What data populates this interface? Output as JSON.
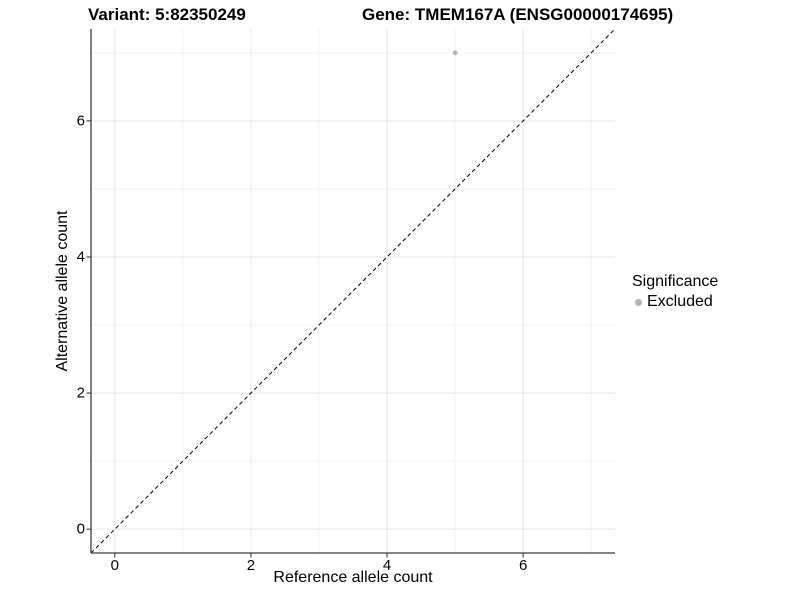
{
  "chart_data": {
    "type": "scatter",
    "title_left": "Variant: 5:82350249",
    "title_right": "Gene: TMEM167A (ENSG00000174695)",
    "xlabel": "Reference allele count",
    "ylabel": "Alternative allele count",
    "xlim": [
      -0.35,
      7.35
    ],
    "ylim": [
      -0.35,
      7.35
    ],
    "xticks": [
      0,
      2,
      4,
      6
    ],
    "yticks": [
      0,
      2,
      4,
      6
    ],
    "xminor": [
      1,
      3,
      5,
      7
    ],
    "yminor": [
      1,
      3,
      5,
      7
    ],
    "grid": "on",
    "series": [
      {
        "name": "Excluded",
        "color": "#b3b3b3",
        "marker": "point",
        "points": [
          {
            "x": 5,
            "y": 7
          }
        ]
      }
    ],
    "reference_line": {
      "type": "abline",
      "slope": 1,
      "intercept": 0,
      "style": "dashed",
      "color": "#000000"
    },
    "legend": {
      "title": "Significance",
      "position": "right",
      "items": [
        {
          "label": "Excluded",
          "color": "#b3b3b3",
          "marker": "point"
        }
      ]
    },
    "colors": {
      "background": "#ffffff",
      "grid_major": "#e4e4e4",
      "grid_minor": "#f1f1f1",
      "axis_line": "#3c3c3c",
      "text": "#000000"
    }
  }
}
